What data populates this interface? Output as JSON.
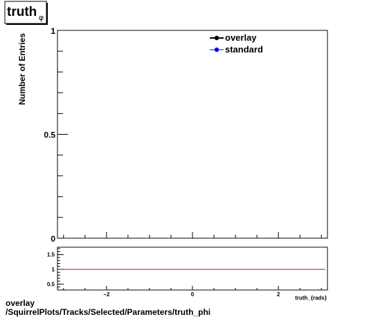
{
  "title": {
    "main": "truth",
    "sub": "φ"
  },
  "colors": {
    "overlay": "#000000",
    "standard": "#0000ff",
    "ratio_line": "#cc0000"
  },
  "chart_data": [
    {
      "type": "line",
      "panel": "main",
      "ylabel": "Number of Entries",
      "ylim": [
        0,
        1
      ],
      "y_ticks": [
        {
          "value": 0,
          "label": "0"
        },
        {
          "value": 0.5,
          "label": "0.5"
        },
        {
          "value": 1,
          "label": "1"
        }
      ],
      "legend_position": "top-right",
      "series": [
        {
          "name": "overlay",
          "values": []
        },
        {
          "name": "standard",
          "values": []
        }
      ]
    },
    {
      "type": "line",
      "panel": "ratio",
      "xlabel": "truth_{rads}",
      "xlim": [
        -3.14159,
        3.14159
      ],
      "ylim": [
        0.3,
        1.75
      ],
      "x_ticks": [
        {
          "value": -2,
          "label": "−2"
        },
        {
          "value": 0,
          "label": "0"
        },
        {
          "value": 2,
          "label": "2"
        }
      ],
      "y_ticks": [
        {
          "value": 0.5,
          "label": "0.5"
        },
        {
          "value": 1,
          "label": "1"
        },
        {
          "value": 1.5,
          "label": "1.5"
        }
      ],
      "reference_line": 1
    }
  ],
  "footer": {
    "line1": "overlay",
    "line2": "/SquirrelPlots/Tracks/Selected/Parameters/truth_phi"
  }
}
